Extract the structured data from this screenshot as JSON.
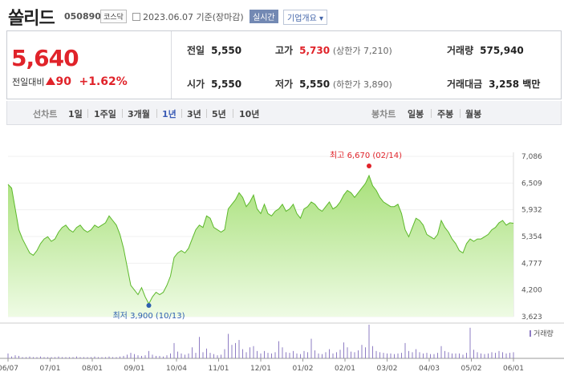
{
  "header": {
    "name": "쏠리드",
    "code": "050890",
    "market": "코스닥",
    "date_text": "2023.06.07 기준(장마감)",
    "realtime": "실시간",
    "overview": "기업개요 ▾"
  },
  "quote": {
    "price": "5,640",
    "change_label": "전일대비",
    "change_value": "90",
    "change_pct": "+1.62%",
    "prev_label": "전일",
    "prev_value": "5,550",
    "high_label": "고가",
    "high_value": "5,730",
    "upper_limit": "(상한가 7,210)",
    "volume_label": "거래량",
    "volume_value": "575,940",
    "open_label": "시가",
    "open_value": "5,550",
    "low_label": "저가",
    "low_value": "5,550",
    "lower_limit": "(하한가 3,890)",
    "amount_label": "거래대금",
    "amount_value": "3,258 백만"
  },
  "periods": {
    "line_chart": "선차트",
    "items": [
      "1일",
      "1주일",
      "3개월",
      "1년",
      "3년",
      "5년",
      "10년"
    ],
    "active": "1년",
    "candle_chart": "봉차트",
    "candle_items": [
      "일봉",
      "주봉",
      "월봉"
    ]
  },
  "colors": {
    "up": "#e0232a",
    "down": "#2d5fb0",
    "area_line": "#5cb82a",
    "area_fill": "#c9efaa",
    "volume": "#8e7cc3"
  },
  "chart_data": {
    "type": "area",
    "x_ticks": [
      "06/07",
      "07/01",
      "08/01",
      "09/01",
      "10/04",
      "11/01",
      "12/01",
      "01/02",
      "02/01",
      "03/02",
      "04/03",
      "05/02",
      "06/01"
    ],
    "y_ticks": [
      "7,086",
      "6,509",
      "5,932",
      "5,354",
      "4,777",
      "4,200",
      "3,623"
    ],
    "ylim": [
      3623,
      7086
    ],
    "high_label": "최고 6,670 (02/14)",
    "low_label": "최저 3,900 (10/13)",
    "volume_legend": "거래량",
    "values": [
      6480,
      6400,
      5950,
      5500,
      5300,
      5150,
      5000,
      4950,
      5050,
      5200,
      5300,
      5350,
      5250,
      5300,
      5450,
      5550,
      5600,
      5500,
      5450,
      5550,
      5600,
      5500,
      5450,
      5500,
      5600,
      5550,
      5600,
      5650,
      5800,
      5700,
      5600,
      5400,
      5100,
      4700,
      4300,
      4200,
      4100,
      4250,
      4050,
      3900,
      4050,
      4150,
      4100,
      4150,
      4300,
      4500,
      4900,
      5000,
      5050,
      5000,
      5100,
      5300,
      5500,
      5600,
      5550,
      5800,
      5750,
      5550,
      5500,
      5450,
      5500,
      5950,
      6050,
      6150,
      6300,
      6200,
      6000,
      6100,
      6250,
      5950,
      5850,
      6050,
      5850,
      5800,
      5900,
      5950,
      6050,
      5900,
      5950,
      6050,
      5850,
      5750,
      5950,
      6000,
      6100,
      6050,
      5950,
      5900,
      6000,
      6100,
      5950,
      6000,
      6100,
      6250,
      6350,
      6300,
      6200,
      6300,
      6400,
      6500,
      6670,
      6450,
      6350,
      6200,
      6100,
      6050,
      6000,
      6000,
      6050,
      5850,
      5500,
      5350,
      5550,
      5750,
      5700,
      5600,
      5400,
      5350,
      5300,
      5400,
      5700,
      5550,
      5450,
      5300,
      5200,
      5050,
      5000,
      5200,
      5300,
      5250,
      5300,
      5300,
      5350,
      5400,
      5500,
      5550,
      5650,
      5700,
      5600,
      5650,
      5640
    ],
    "volumes": [
      0.8,
      0.3,
      0.5,
      0.4,
      0.2,
      0.2,
      0.3,
      0.2,
      0.2,
      0.3,
      0.2,
      0.2,
      0.2,
      0.2,
      0.3,
      0.2,
      0.2,
      0.2,
      0.2,
      0.3,
      0.2,
      0.2,
      0.2,
      0.2,
      0.3,
      0.2,
      0.2,
      0.2,
      0.3,
      0.2,
      0.2,
      0.3,
      0.4,
      0.6,
      0.9,
      0.7,
      0.5,
      0.4,
      0.5,
      1.2,
      0.6,
      0.4,
      0.4,
      0.3,
      0.5,
      0.8,
      2.5,
      1.1,
      0.8,
      0.6,
      0.8,
      1.8,
      0.9,
      3.5,
      1.0,
      1.6,
      0.9,
      0.7,
      0.5,
      0.6,
      1.5,
      4.0,
      2.2,
      2.5,
      3.0,
      1.5,
      1.0,
      1.8,
      2.0,
      1.2,
      0.8,
      1.2,
      0.9,
      0.8,
      1.0,
      2.8,
      1.8,
      1.0,
      0.9,
      1.2,
      0.8,
      0.7,
      1.2,
      1.0,
      3.2,
      1.3,
      0.8,
      0.7,
      1.0,
      1.5,
      0.8,
      1.0,
      1.4,
      2.6,
      1.8,
      1.1,
      1.0,
      1.3,
      2.2,
      1.8,
      5.5,
      2.0,
      1.2,
      1.0,
      0.9,
      0.8,
      0.8,
      0.7,
      0.8,
      0.9,
      2.5,
      1.2,
      1.0,
      1.5,
      1.0,
      0.8,
      0.9,
      0.7,
      0.7,
      0.9,
      2.0,
      1.2,
      1.0,
      0.8,
      0.8,
      0.8,
      0.6,
      0.9,
      5.0,
      1.4,
      1.0,
      0.8,
      0.7,
      0.8,
      1.0,
      0.9,
      1.2,
      1.0,
      0.8,
      0.9,
      1.0
    ]
  }
}
